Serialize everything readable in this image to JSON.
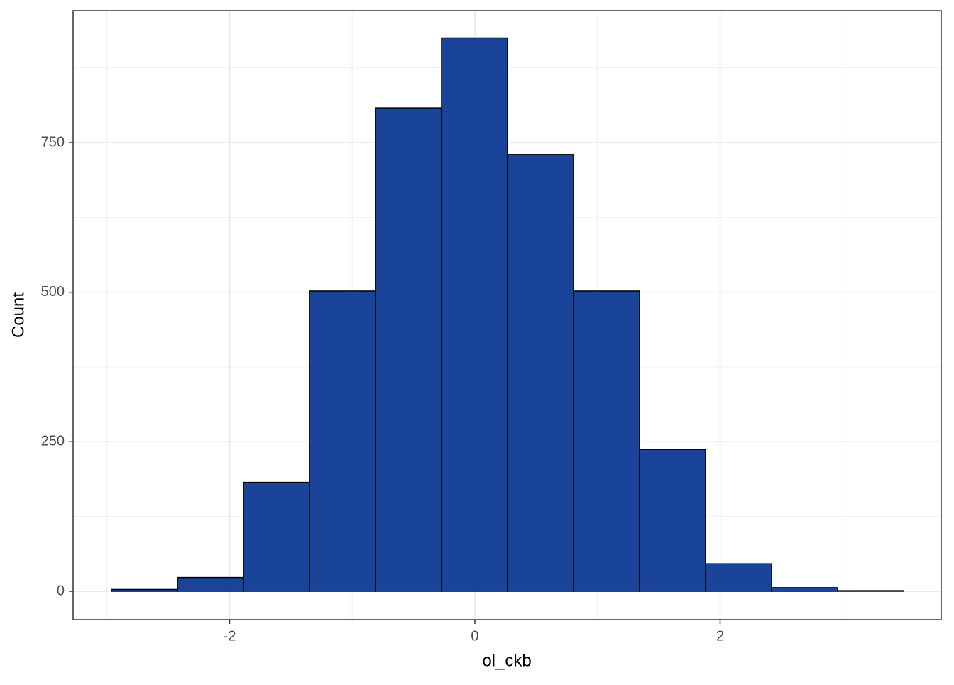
{
  "chart_data": {
    "type": "histogram",
    "x_label": "ol_ckb",
    "y_label": "Count",
    "bins": [
      -2.964,
      -2.425,
      -1.887,
      -1.349,
      -0.81,
      -0.272,
      0.266,
      0.805,
      1.343,
      1.881,
      2.42,
      2.958,
      3.496
    ],
    "values": [
      3,
      23,
      182,
      502,
      808,
      925,
      730,
      502,
      237,
      46,
      6,
      1
    ],
    "color": "#1a4499",
    "edge_color": "#000000",
    "xlim": [
      -3.276,
      3.803
    ],
    "ylim": [
      -47.5,
      970.7
    ],
    "xticks": [
      -2,
      0,
      2
    ],
    "yticks": [
      0,
      250,
      500,
      750
    ],
    "x_minor_ticks": [
      -3,
      -1,
      1,
      3
    ],
    "y_minor_ticks": [
      125,
      375,
      625,
      875
    ],
    "grid": true
  }
}
